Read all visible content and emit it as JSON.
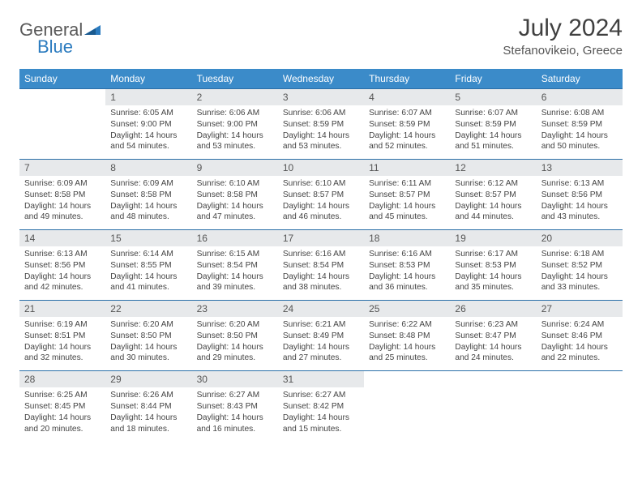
{
  "logo": {
    "text1": "General",
    "text2": "Blue"
  },
  "title": "July 2024",
  "location": "Stefanovikeio, Greece",
  "colors": {
    "header_bg": "#3b8bc9",
    "header_text": "#ffffff",
    "daynum_bg": "#e7e9eb",
    "rule": "#2b6fa8",
    "body_text": "#444444"
  },
  "days_of_week": [
    "Sunday",
    "Monday",
    "Tuesday",
    "Wednesday",
    "Thursday",
    "Friday",
    "Saturday"
  ],
  "weeks": [
    [
      {
        "n": "",
        "sunrise": "",
        "sunset": "",
        "daylight": ""
      },
      {
        "n": "1",
        "sunrise": "Sunrise: 6:05 AM",
        "sunset": "Sunset: 9:00 PM",
        "daylight": "Daylight: 14 hours and 54 minutes."
      },
      {
        "n": "2",
        "sunrise": "Sunrise: 6:06 AM",
        "sunset": "Sunset: 9:00 PM",
        "daylight": "Daylight: 14 hours and 53 minutes."
      },
      {
        "n": "3",
        "sunrise": "Sunrise: 6:06 AM",
        "sunset": "Sunset: 8:59 PM",
        "daylight": "Daylight: 14 hours and 53 minutes."
      },
      {
        "n": "4",
        "sunrise": "Sunrise: 6:07 AM",
        "sunset": "Sunset: 8:59 PM",
        "daylight": "Daylight: 14 hours and 52 minutes."
      },
      {
        "n": "5",
        "sunrise": "Sunrise: 6:07 AM",
        "sunset": "Sunset: 8:59 PM",
        "daylight": "Daylight: 14 hours and 51 minutes."
      },
      {
        "n": "6",
        "sunrise": "Sunrise: 6:08 AM",
        "sunset": "Sunset: 8:59 PM",
        "daylight": "Daylight: 14 hours and 50 minutes."
      }
    ],
    [
      {
        "n": "7",
        "sunrise": "Sunrise: 6:09 AM",
        "sunset": "Sunset: 8:58 PM",
        "daylight": "Daylight: 14 hours and 49 minutes."
      },
      {
        "n": "8",
        "sunrise": "Sunrise: 6:09 AM",
        "sunset": "Sunset: 8:58 PM",
        "daylight": "Daylight: 14 hours and 48 minutes."
      },
      {
        "n": "9",
        "sunrise": "Sunrise: 6:10 AM",
        "sunset": "Sunset: 8:58 PM",
        "daylight": "Daylight: 14 hours and 47 minutes."
      },
      {
        "n": "10",
        "sunrise": "Sunrise: 6:10 AM",
        "sunset": "Sunset: 8:57 PM",
        "daylight": "Daylight: 14 hours and 46 minutes."
      },
      {
        "n": "11",
        "sunrise": "Sunrise: 6:11 AM",
        "sunset": "Sunset: 8:57 PM",
        "daylight": "Daylight: 14 hours and 45 minutes."
      },
      {
        "n": "12",
        "sunrise": "Sunrise: 6:12 AM",
        "sunset": "Sunset: 8:57 PM",
        "daylight": "Daylight: 14 hours and 44 minutes."
      },
      {
        "n": "13",
        "sunrise": "Sunrise: 6:13 AM",
        "sunset": "Sunset: 8:56 PM",
        "daylight": "Daylight: 14 hours and 43 minutes."
      }
    ],
    [
      {
        "n": "14",
        "sunrise": "Sunrise: 6:13 AM",
        "sunset": "Sunset: 8:56 PM",
        "daylight": "Daylight: 14 hours and 42 minutes."
      },
      {
        "n": "15",
        "sunrise": "Sunrise: 6:14 AM",
        "sunset": "Sunset: 8:55 PM",
        "daylight": "Daylight: 14 hours and 41 minutes."
      },
      {
        "n": "16",
        "sunrise": "Sunrise: 6:15 AM",
        "sunset": "Sunset: 8:54 PM",
        "daylight": "Daylight: 14 hours and 39 minutes."
      },
      {
        "n": "17",
        "sunrise": "Sunrise: 6:16 AM",
        "sunset": "Sunset: 8:54 PM",
        "daylight": "Daylight: 14 hours and 38 minutes."
      },
      {
        "n": "18",
        "sunrise": "Sunrise: 6:16 AM",
        "sunset": "Sunset: 8:53 PM",
        "daylight": "Daylight: 14 hours and 36 minutes."
      },
      {
        "n": "19",
        "sunrise": "Sunrise: 6:17 AM",
        "sunset": "Sunset: 8:53 PM",
        "daylight": "Daylight: 14 hours and 35 minutes."
      },
      {
        "n": "20",
        "sunrise": "Sunrise: 6:18 AM",
        "sunset": "Sunset: 8:52 PM",
        "daylight": "Daylight: 14 hours and 33 minutes."
      }
    ],
    [
      {
        "n": "21",
        "sunrise": "Sunrise: 6:19 AM",
        "sunset": "Sunset: 8:51 PM",
        "daylight": "Daylight: 14 hours and 32 minutes."
      },
      {
        "n": "22",
        "sunrise": "Sunrise: 6:20 AM",
        "sunset": "Sunset: 8:50 PM",
        "daylight": "Daylight: 14 hours and 30 minutes."
      },
      {
        "n": "23",
        "sunrise": "Sunrise: 6:20 AM",
        "sunset": "Sunset: 8:50 PM",
        "daylight": "Daylight: 14 hours and 29 minutes."
      },
      {
        "n": "24",
        "sunrise": "Sunrise: 6:21 AM",
        "sunset": "Sunset: 8:49 PM",
        "daylight": "Daylight: 14 hours and 27 minutes."
      },
      {
        "n": "25",
        "sunrise": "Sunrise: 6:22 AM",
        "sunset": "Sunset: 8:48 PM",
        "daylight": "Daylight: 14 hours and 25 minutes."
      },
      {
        "n": "26",
        "sunrise": "Sunrise: 6:23 AM",
        "sunset": "Sunset: 8:47 PM",
        "daylight": "Daylight: 14 hours and 24 minutes."
      },
      {
        "n": "27",
        "sunrise": "Sunrise: 6:24 AM",
        "sunset": "Sunset: 8:46 PM",
        "daylight": "Daylight: 14 hours and 22 minutes."
      }
    ],
    [
      {
        "n": "28",
        "sunrise": "Sunrise: 6:25 AM",
        "sunset": "Sunset: 8:45 PM",
        "daylight": "Daylight: 14 hours and 20 minutes."
      },
      {
        "n": "29",
        "sunrise": "Sunrise: 6:26 AM",
        "sunset": "Sunset: 8:44 PM",
        "daylight": "Daylight: 14 hours and 18 minutes."
      },
      {
        "n": "30",
        "sunrise": "Sunrise: 6:27 AM",
        "sunset": "Sunset: 8:43 PM",
        "daylight": "Daylight: 14 hours and 16 minutes."
      },
      {
        "n": "31",
        "sunrise": "Sunrise: 6:27 AM",
        "sunset": "Sunset: 8:42 PM",
        "daylight": "Daylight: 14 hours and 15 minutes."
      },
      {
        "n": "",
        "sunrise": "",
        "sunset": "",
        "daylight": ""
      },
      {
        "n": "",
        "sunrise": "",
        "sunset": "",
        "daylight": ""
      },
      {
        "n": "",
        "sunrise": "",
        "sunset": "",
        "daylight": ""
      }
    ]
  ]
}
